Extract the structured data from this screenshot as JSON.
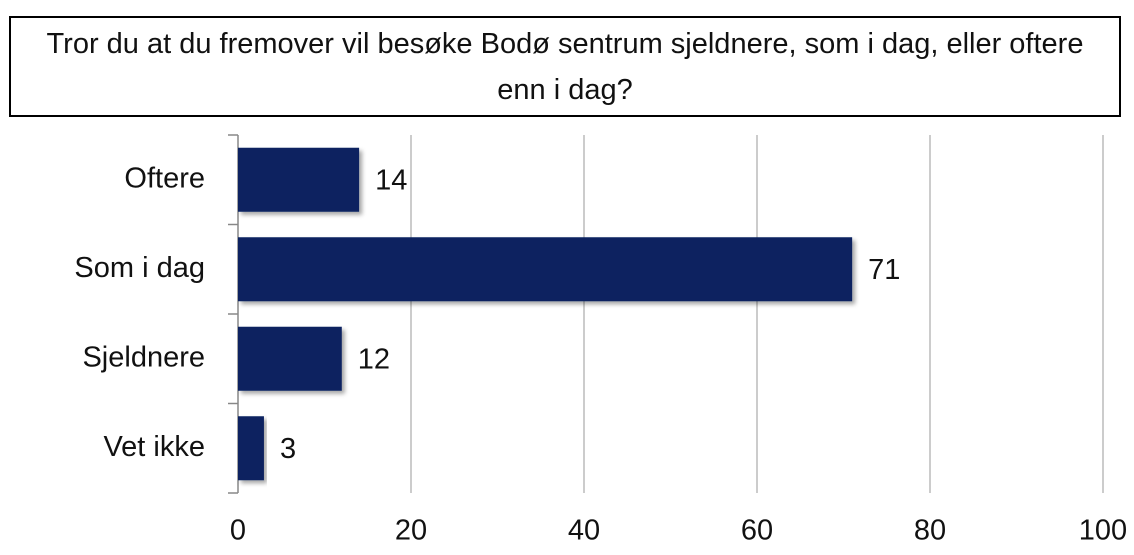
{
  "chart_data": {
    "type": "bar",
    "orientation": "horizontal",
    "title": "Tror du at du fremover vil besøke Bodø sentrum sjeldnere, som i dag, eller oftere enn i dag?",
    "categories": [
      "Oftere",
      "Som i dag",
      "Sjeldnere",
      "Vet ikke"
    ],
    "values": [
      14,
      71,
      12,
      3
    ],
    "color": "#0c2461",
    "xlim": [
      0,
      100
    ],
    "xticks": [
      0,
      20,
      40,
      60,
      80,
      100
    ],
    "grid": true
  }
}
